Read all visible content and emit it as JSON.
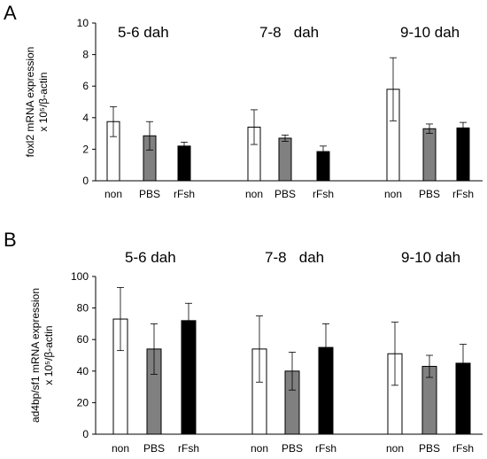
{
  "chart_data": [
    {
      "type": "bar",
      "panel": "A",
      "ylabel_line1": "foxl2 mRNA expression",
      "ylabel_line2": "x 10⁵/β-actin",
      "ylim": [
        0,
        10
      ],
      "yticks": [
        0,
        2,
        4,
        6,
        8,
        10
      ],
      "groups": [
        "5-6 dah",
        "7-8   dah",
        "9-10 dah"
      ],
      "categories": [
        "non",
        "PBS",
        "rFsh"
      ],
      "series": [
        {
          "group": "5-6 dah",
          "values": [
            3.75,
            2.85,
            2.2
          ],
          "errors": [
            0.95,
            0.9,
            0.25
          ]
        },
        {
          "group": "7-8   dah",
          "values": [
            3.4,
            2.7,
            1.85
          ],
          "errors": [
            1.1,
            0.2,
            0.35
          ]
        },
        {
          "group": "9-10 dah",
          "values": [
            5.8,
            3.3,
            3.35
          ],
          "errors": [
            2.0,
            0.3,
            0.35
          ]
        }
      ]
    },
    {
      "type": "bar",
      "panel": "B",
      "ylabel_line1": "ad4bp/sf1 mRNA expression",
      "ylabel_line2": "x 10⁵/β-actin",
      "ylim": [
        0,
        100
      ],
      "yticks": [
        0,
        20,
        40,
        60,
        80,
        100
      ],
      "groups": [
        "5-6 dah",
        "7-8   dah",
        "9-10 dah"
      ],
      "categories": [
        "non",
        "PBS",
        "rFsh"
      ],
      "series": [
        {
          "group": "5-6 dah",
          "values": [
            73,
            54,
            72
          ],
          "errors": [
            20,
            16,
            11
          ]
        },
        {
          "group": "7-8   dah",
          "values": [
            54,
            40,
            55
          ],
          "errors": [
            21,
            12,
            15
          ]
        },
        {
          "group": "9-10 dah",
          "values": [
            51,
            43,
            45
          ],
          "errors": [
            20,
            7,
            12
          ]
        }
      ]
    }
  ],
  "colors": {
    "non": "#ffffff",
    "PBS": "#808080",
    "rFsh": "#000000",
    "axis": "#000000",
    "error": "#000000"
  }
}
